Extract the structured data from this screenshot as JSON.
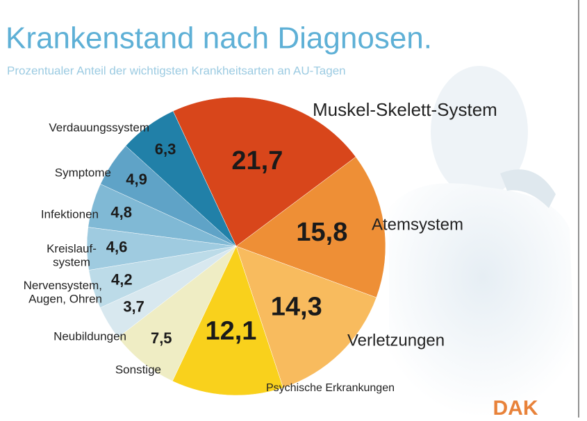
{
  "chart_data": {
    "type": "pie",
    "title": "Krankenstand nach Diagnosen.",
    "subtitle": "Prozentualer Anteil der wichtigsten Krankheitsarten an AU-Tagen",
    "categories": [
      "Muskel-Skelett-System",
      "Atemsystem",
      "Verletzungen",
      "Psychische Erkrankungen",
      "Sonstige",
      "Neubildungen",
      "Nervensystem,\nAugen, Ohren",
      "Kreislauf-\nsystem",
      "Infektionen",
      "Symptome",
      "Verdauungssystem"
    ],
    "values": [
      21.7,
      15.8,
      14.3,
      12.1,
      7.5,
      3.7,
      4.2,
      4.6,
      4.8,
      4.9,
      6.3
    ],
    "value_labels": [
      "21,7",
      "15,8",
      "14,3",
      "12,1",
      "7,5",
      "3,7",
      "4,2",
      "4,6",
      "4,8",
      "4,9",
      "6,3"
    ],
    "colors": [
      "#d8461b",
      "#ee8f36",
      "#f8bb5e",
      "#f9d11c",
      "#efedc4",
      "#d8e8ef",
      "#bcdbe8",
      "#9fcbe0",
      "#80b9d5",
      "#5fa3c7",
      "#2180a8"
    ],
    "logo": "DAK"
  }
}
